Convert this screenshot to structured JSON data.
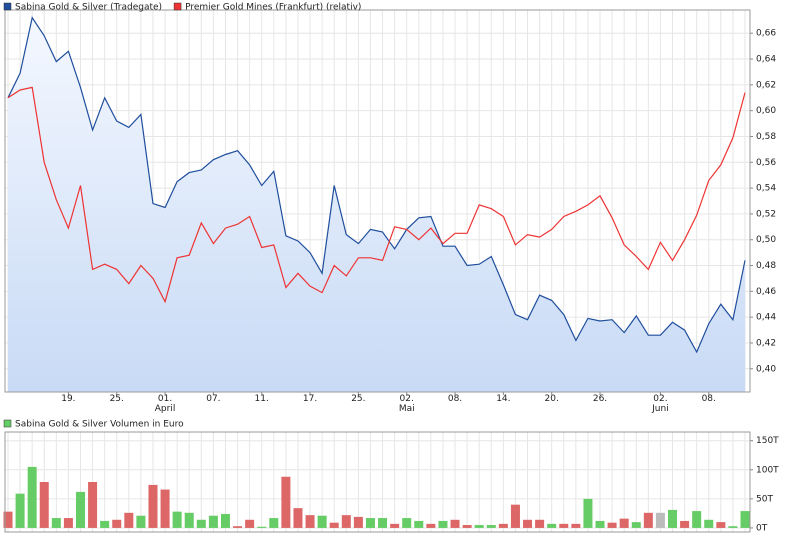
{
  "chart_data": [
    {
      "type": "line",
      "categories": [
        null,
        null,
        null,
        null,
        null,
        "19.",
        null,
        null,
        null,
        "25.",
        null,
        null,
        null,
        "01.\nApril",
        null,
        null,
        null,
        "07.",
        null,
        null,
        null,
        "11.",
        null,
        null,
        null,
        "17.",
        null,
        null,
        null,
        "25.",
        null,
        null,
        null,
        "02.\nMai",
        null,
        null,
        null,
        "08.",
        null,
        null,
        null,
        "14.",
        null,
        null,
        null,
        "20.",
        null,
        null,
        null,
        "26.",
        null,
        null,
        null,
        null,
        "02.\nJuni",
        null,
        null,
        null,
        "08.",
        null,
        null,
        null
      ],
      "series": [
        {
          "name": "Sabina Gold & Silver (Tradegate)",
          "color": "#1f4e9c",
          "fill": true,
          "values": [
            0.61,
            0.629,
            0.672,
            0.658,
            0.638,
            0.646,
            0.618,
            0.585,
            0.61,
            0.592,
            0.587,
            0.597,
            0.528,
            0.525,
            0.545,
            0.552,
            0.554,
            0.562,
            0.566,
            0.569,
            0.558,
            0.542,
            0.553,
            0.503,
            0.499,
            0.49,
            0.474,
            0.542,
            0.504,
            0.497,
            0.508,
            0.506,
            0.493,
            0.508,
            0.517,
            0.518,
            0.495,
            0.495,
            0.48,
            0.481,
            0.487,
            0.465,
            0.442,
            0.438,
            0.457,
            0.453,
            0.442,
            0.422,
            0.439,
            0.437,
            0.438,
            0.428,
            0.441,
            0.426,
            0.426,
            0.436,
            0.43,
            0.413,
            0.435,
            0.45,
            0.438,
            0.484
          ]
        },
        {
          "name": "Premier Gold Mines (Frankfurt) (relativ)",
          "color": "#ee3333",
          "fill": false,
          "values": [
            0.61,
            0.616,
            0.618,
            0.56,
            0.531,
            0.509,
            0.542,
            0.477,
            0.481,
            0.477,
            0.466,
            0.48,
            0.47,
            0.452,
            0.486,
            0.488,
            0.513,
            0.497,
            0.509,
            0.512,
            0.518,
            0.494,
            0.496,
            0.463,
            0.474,
            0.464,
            0.459,
            0.48,
            0.472,
            0.486,
            0.486,
            0.484,
            0.51,
            0.508,
            0.5,
            0.509,
            0.497,
            0.505,
            0.505,
            0.527,
            0.524,
            0.518,
            0.496,
            0.504,
            0.502,
            0.508,
            0.518,
            0.522,
            0.527,
            0.534,
            0.517,
            0.496,
            0.487,
            0.477,
            0.498,
            0.484,
            0.5,
            0.519,
            0.546,
            0.558,
            0.579,
            0.614
          ]
        }
      ],
      "ylim": [
        0.382,
        0.678
      ],
      "yticks": [
        {
          "value": 0.4,
          "label": "0,40"
        },
        {
          "value": 0.42,
          "label": "0,42"
        },
        {
          "value": 0.44,
          "label": "0,44"
        },
        {
          "value": 0.46,
          "label": "0,46"
        },
        {
          "value": 0.48,
          "label": "0,48"
        },
        {
          "value": 0.5,
          "label": "0,50"
        },
        {
          "value": 0.52,
          "label": "0,52"
        },
        {
          "value": 0.54,
          "label": "0,54"
        },
        {
          "value": 0.56,
          "label": "0,56"
        },
        {
          "value": 0.58,
          "label": "0,58"
        },
        {
          "value": 0.6,
          "label": "0,60"
        },
        {
          "value": 0.62,
          "label": "0,62"
        },
        {
          "value": 0.64,
          "label": "0,64"
        },
        {
          "value": 0.66,
          "label": "0,66"
        }
      ],
      "grid": true
    },
    {
      "type": "bar",
      "series": [
        {
          "name": "Sabina Gold & Silver Volumen in Euro",
          "color": "#66cc66",
          "values": [
            28,
            59,
            105,
            79,
            17,
            17,
            62,
            79,
            12,
            14,
            26,
            21,
            74,
            66,
            28,
            26,
            14,
            21,
            24,
            3,
            14,
            2,
            17,
            88,
            34,
            22,
            21,
            9,
            22,
            19,
            17,
            17,
            7,
            17,
            12,
            7,
            12,
            14,
            5,
            5,
            5,
            7,
            40,
            14,
            14,
            7,
            7,
            7,
            50,
            12,
            9,
            16,
            10,
            26,
            26,
            31,
            12,
            29,
            14,
            10,
            3,
            29
          ],
          "bar_colors": [
            "#dd6666",
            "#66cc66",
            "#66cc66",
            "#dd6666",
            "#66cc66",
            "#dd6666",
            "#66cc66",
            "#dd6666",
            "#66cc66",
            "#dd6666",
            "#dd6666",
            "#66cc66",
            "#dd6666",
            "#dd6666",
            "#66cc66",
            "#66cc66",
            "#66cc66",
            "#66cc66",
            "#66cc66",
            "#dd6666",
            "#dd6666",
            "#66cc66",
            "#66cc66",
            "#dd6666",
            "#dd6666",
            "#dd6666",
            "#66cc66",
            "#dd6666",
            "#dd6666",
            "#dd6666",
            "#66cc66",
            "#66cc66",
            "#dd6666",
            "#66cc66",
            "#66cc66",
            "#dd6666",
            "#66cc66",
            "#dd6666",
            "#dd6666",
            "#66cc66",
            "#66cc66",
            "#dd6666",
            "#dd6666",
            "#dd6666",
            "#dd6666",
            "#66cc66",
            "#dd6666",
            "#dd6666",
            "#66cc66",
            "#66cc66",
            "#dd6666",
            "#dd6666",
            "#66cc66",
            "#dd6666",
            "#bbbbbb",
            "#66cc66",
            "#dd6666",
            "#66cc66",
            "#66cc66",
            "#dd6666",
            "#66cc66",
            "#66cc66"
          ]
        }
      ],
      "ylim": [
        -7,
        165
      ],
      "yticks": [
        {
          "value": 0,
          "label": "0T"
        },
        {
          "value": 50,
          "label": "50T"
        },
        {
          "value": 100,
          "label": "100T"
        },
        {
          "value": 150,
          "label": "150T"
        }
      ],
      "grid": true
    }
  ]
}
